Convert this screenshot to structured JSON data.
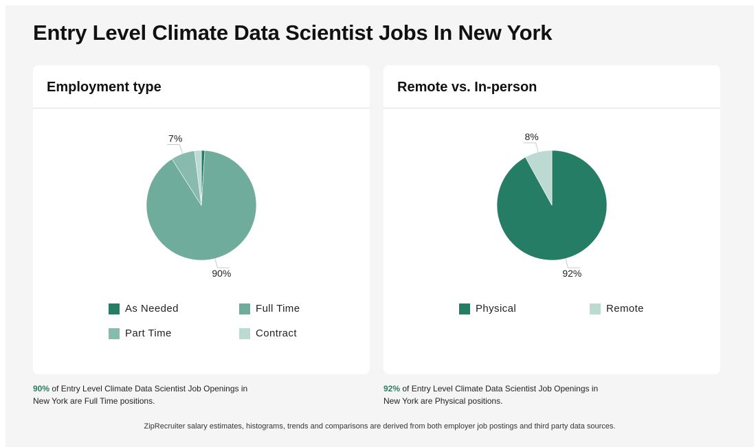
{
  "page": {
    "title": "Entry Level Climate Data Scientist Jobs In New York",
    "footer": "ZipRecruiter salary estimates, histograms, trends and comparisons are derived from both employer job postings and third party data sources."
  },
  "cards": [
    {
      "title": "Employment type",
      "caption": {
        "highlight": "90%",
        "text": " of Entry Level Climate Data Scientist Job Openings in New York are Full Time positions."
      }
    },
    {
      "title": "Remote vs. In-person",
      "caption": {
        "highlight": "92%",
        "text": " of Entry Level Climate Data Scientist Job Openings in New York are Physical positions."
      }
    }
  ],
  "chart_data": [
    {
      "type": "pie",
      "title": "Employment type",
      "slices": [
        {
          "name": "As Needed",
          "value": 1,
          "color": "#267d66"
        },
        {
          "name": "Full Time",
          "value": 90,
          "color": "#6fac9b"
        },
        {
          "name": "Part Time",
          "value": 7,
          "color": "#88baad"
        },
        {
          "name": "Contract",
          "value": 2,
          "color": "#bcd9d2"
        }
      ],
      "data_labels": [
        {
          "slice": "Full Time",
          "text": "90%"
        },
        {
          "slice": "Part Time",
          "text": "7%"
        }
      ],
      "legend_position": "bottom"
    },
    {
      "type": "pie",
      "title": "Remote vs. In-person",
      "slices": [
        {
          "name": "Physical",
          "value": 92,
          "color": "#267d66"
        },
        {
          "name": "Remote",
          "value": 8,
          "color": "#bcd9d2"
        }
      ],
      "data_labels": [
        {
          "slice": "Physical",
          "text": "92%"
        },
        {
          "slice": "Remote",
          "text": "8%"
        }
      ],
      "legend_position": "bottom"
    }
  ]
}
